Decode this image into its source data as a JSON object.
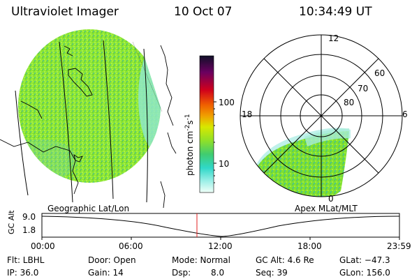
{
  "header": {
    "title": "Ultraviolet Imager",
    "date": "10 Oct 07",
    "time": "10:34:49 UT"
  },
  "colorbar": {
    "unit_prefix": "photon cm",
    "unit_exp1": "-2",
    "unit_mid": "s",
    "unit_exp2": "-1",
    "ticks": [
      "100",
      "10"
    ]
  },
  "polar": {
    "mlt_labels": [
      "12",
      "18",
      "6",
      "0"
    ],
    "lat_labels": [
      "60",
      "70",
      "80"
    ]
  },
  "panel_labels": {
    "left": "Geographic Lat/Lon",
    "right": "Apex MLat/MLT"
  },
  "altitude_plot": {
    "ylabel": "GC Alt",
    "yticks": [
      "9.0",
      "1.8"
    ],
    "xticks": [
      "00:00",
      "06:00",
      "12:00",
      "18:00",
      "23:59"
    ]
  },
  "status": {
    "filter": "Flt: LBHL",
    "door": "Door: Open",
    "mode": "Mode: Normal",
    "gc_alt": "GC Alt: 4.6 Re",
    "glat": "GLat: −47.3",
    "ip": "IP: 36.0",
    "gain": "Gain: 14",
    "dsp_label": "Dsp:",
    "dsp_value": "8.0",
    "seq": "Seq: 39",
    "glon": "GLon: 156.0"
  }
}
